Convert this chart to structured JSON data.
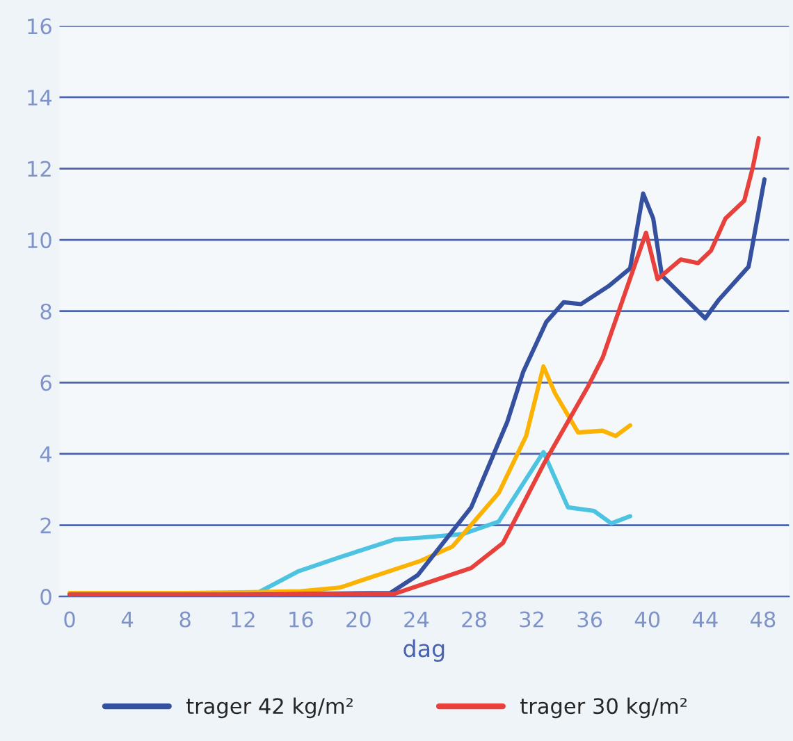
{
  "chart_data": {
    "type": "line",
    "xlabel": "dag",
    "xlim": [
      -0.7,
      49.8
    ],
    "xticks": [
      0,
      4,
      8,
      12,
      16,
      20,
      24,
      28,
      32,
      36,
      40,
      44,
      48
    ],
    "ylim": [
      0,
      16
    ],
    "yticks": [
      0,
      2,
      4,
      6,
      8,
      10,
      12,
      14,
      16
    ],
    "grid": "y",
    "legend": "bottom",
    "marker": "none",
    "line_style": "solid",
    "series": [
      {
        "color": "#4cc3e0",
        "x": [
          0,
          13,
          15.8,
          18.7,
          22.5,
          24.3,
          27.2,
          29.7,
          32.8,
          34.5,
          36.3,
          37.5,
          38.8
        ],
        "values": [
          0.05,
          0.1,
          0.7,
          1.1,
          1.6,
          1.65,
          1.75,
          2.1,
          4.05,
          2.5,
          2.4,
          2.05,
          2.25
        ]
      },
      {
        "color": "#fbb200",
        "x": [
          0,
          8,
          12,
          16,
          18.7,
          24.3,
          26.5,
          29.7,
          31.6,
          32.8,
          33.6,
          35.2,
          36.9,
          37.8,
          38.8
        ],
        "values": [
          0.1,
          0.1,
          0.12,
          0.15,
          0.25,
          1.0,
          1.4,
          2.9,
          4.5,
          6.45,
          5.7,
          4.6,
          4.65,
          4.5,
          4.8
        ]
      },
      {
        "name": "trager 42 kg/m²",
        "color": "#34509e",
        "x": [
          0,
          12,
          22.2,
          24.1,
          27.8,
          30.3,
          31.4,
          33.0,
          34.2,
          35.4,
          37.3,
          38.8,
          39.7,
          40.4,
          41.0,
          44.0,
          44.9,
          47.0,
          48.1
        ],
        "values": [
          0.05,
          0.05,
          0.1,
          0.6,
          2.5,
          4.9,
          6.3,
          7.7,
          8.25,
          8.2,
          8.7,
          9.2,
          11.3,
          10.6,
          9.0,
          7.8,
          8.3,
          9.25,
          11.7
        ]
      },
      {
        "name": "trager 30 kg/m²",
        "color": "#e8413c",
        "x": [
          0,
          12,
          22.5,
          25.6,
          27.8,
          30.0,
          32.8,
          35.9,
          36.9,
          39.9,
          40.7,
          42.3,
          43.5,
          44.4,
          45.4,
          46.7,
          47.3,
          47.7
        ],
        "values": [
          0.05,
          0.05,
          0.08,
          0.5,
          0.8,
          1.5,
          3.7,
          5.9,
          6.7,
          10.2,
          8.9,
          9.45,
          9.35,
          9.7,
          10.6,
          11.1,
          12.05,
          12.85
        ]
      }
    ]
  }
}
